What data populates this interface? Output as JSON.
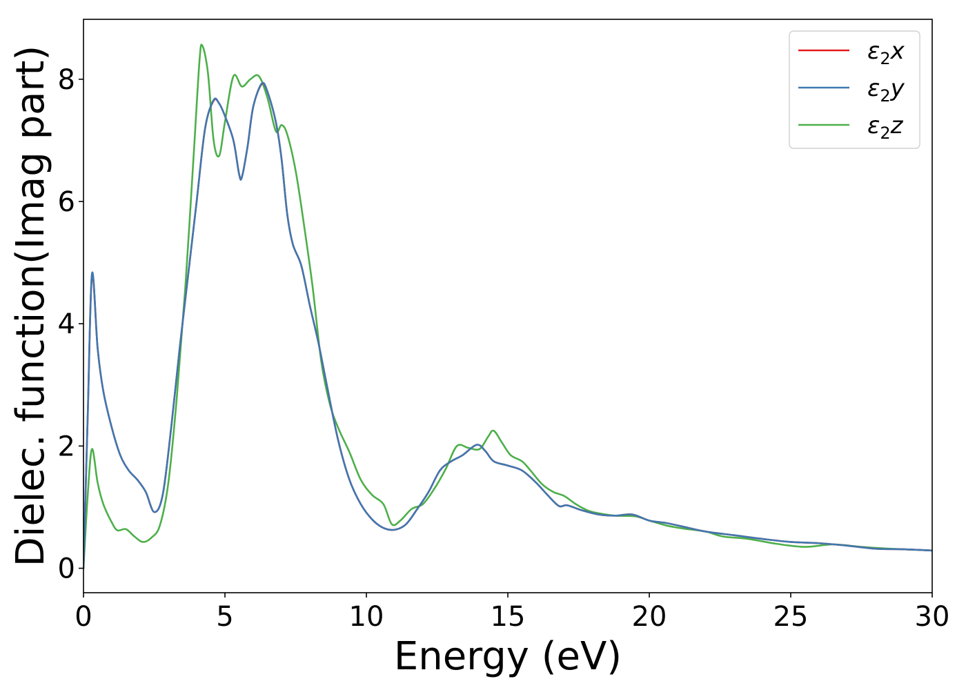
{
  "chart_data": {
    "type": "line",
    "title": "",
    "xlabel": "Energy (eV)",
    "ylabel": "Dielec. function(Imag part)",
    "xlim": [
      0,
      30
    ],
    "ylim": [
      -0.4,
      8.98
    ],
    "xticks": [
      0,
      5,
      10,
      15,
      20,
      25,
      30
    ],
    "yticks": [
      0,
      2,
      4,
      6,
      8
    ],
    "grid": false,
    "legend": {
      "position": "top-right"
    },
    "series": [
      {
        "name": "ε₂x",
        "legend_base": "ε",
        "legend_sub": "2",
        "legend_var": "x",
        "color": "#e41a1c",
        "points": [
          [
            0,
            0
          ],
          [
            0.15,
            2.5
          ],
          [
            0.3,
            4.8
          ],
          [
            0.5,
            3.6
          ],
          [
            0.7,
            2.9
          ],
          [
            1.0,
            2.3
          ],
          [
            1.3,
            1.85
          ],
          [
            1.6,
            1.6
          ],
          [
            1.9,
            1.45
          ],
          [
            2.2,
            1.25
          ],
          [
            2.5,
            0.92
          ],
          [
            2.8,
            1.2
          ],
          [
            3.1,
            2.3
          ],
          [
            3.4,
            3.6
          ],
          [
            3.7,
            4.8
          ],
          [
            4.0,
            6.0
          ],
          [
            4.3,
            7.2
          ],
          [
            4.6,
            7.65
          ],
          [
            4.8,
            7.6
          ],
          [
            5.0,
            7.4
          ],
          [
            5.3,
            7.0
          ],
          [
            5.5,
            6.45
          ],
          [
            5.6,
            6.4
          ],
          [
            5.8,
            6.9
          ],
          [
            6.0,
            7.55
          ],
          [
            6.3,
            7.92
          ],
          [
            6.5,
            7.8
          ],
          [
            6.8,
            7.3
          ],
          [
            7.0,
            6.7
          ],
          [
            7.2,
            5.8
          ],
          [
            7.4,
            5.3
          ],
          [
            7.7,
            4.95
          ],
          [
            8.0,
            4.3
          ],
          [
            8.3,
            3.7
          ],
          [
            8.6,
            3.0
          ],
          [
            9.0,
            2.1
          ],
          [
            9.4,
            1.45
          ],
          [
            9.8,
            1.05
          ],
          [
            10.2,
            0.8
          ],
          [
            10.6,
            0.66
          ],
          [
            11.0,
            0.63
          ],
          [
            11.4,
            0.72
          ],
          [
            11.8,
            0.97
          ],
          [
            12.2,
            1.25
          ],
          [
            12.6,
            1.6
          ],
          [
            13.0,
            1.75
          ],
          [
            13.4,
            1.85
          ],
          [
            13.9,
            2.02
          ],
          [
            14.2,
            1.92
          ],
          [
            14.5,
            1.75
          ],
          [
            15.0,
            1.68
          ],
          [
            15.5,
            1.6
          ],
          [
            16.0,
            1.4
          ],
          [
            16.4,
            1.2
          ],
          [
            16.8,
            1.02
          ],
          [
            17.1,
            1.03
          ],
          [
            17.6,
            0.95
          ],
          [
            18.2,
            0.88
          ],
          [
            18.8,
            0.86
          ],
          [
            19.4,
            0.88
          ],
          [
            20.0,
            0.78
          ],
          [
            20.6,
            0.74
          ],
          [
            21.2,
            0.68
          ],
          [
            22.0,
            0.6
          ],
          [
            23.0,
            0.54
          ],
          [
            24.0,
            0.48
          ],
          [
            25.0,
            0.43
          ],
          [
            26.0,
            0.41
          ],
          [
            27.0,
            0.37
          ],
          [
            28.0,
            0.32
          ],
          [
            29.0,
            0.31
          ],
          [
            30.0,
            0.29
          ]
        ]
      },
      {
        "name": "ε₂y",
        "legend_base": "ε",
        "legend_sub": "2",
        "legend_var": "y",
        "color": "#3f78b0",
        "points": [
          [
            0,
            0
          ],
          [
            0.15,
            2.5
          ],
          [
            0.3,
            4.82
          ],
          [
            0.5,
            3.6
          ],
          [
            0.7,
            2.9
          ],
          [
            1.0,
            2.3
          ],
          [
            1.3,
            1.85
          ],
          [
            1.6,
            1.6
          ],
          [
            1.9,
            1.45
          ],
          [
            2.2,
            1.25
          ],
          [
            2.5,
            0.92
          ],
          [
            2.8,
            1.2
          ],
          [
            3.1,
            2.3
          ],
          [
            3.4,
            3.6
          ],
          [
            3.7,
            4.8
          ],
          [
            4.0,
            6.0
          ],
          [
            4.3,
            7.2
          ],
          [
            4.6,
            7.66
          ],
          [
            4.8,
            7.6
          ],
          [
            5.0,
            7.4
          ],
          [
            5.3,
            7.0
          ],
          [
            5.5,
            6.45
          ],
          [
            5.6,
            6.4
          ],
          [
            5.8,
            6.9
          ],
          [
            6.0,
            7.55
          ],
          [
            6.3,
            7.93
          ],
          [
            6.5,
            7.8
          ],
          [
            6.8,
            7.3
          ],
          [
            7.0,
            6.7
          ],
          [
            7.2,
            5.8
          ],
          [
            7.4,
            5.3
          ],
          [
            7.7,
            4.95
          ],
          [
            8.0,
            4.3
          ],
          [
            8.3,
            3.7
          ],
          [
            8.6,
            3.0
          ],
          [
            9.0,
            2.1
          ],
          [
            9.4,
            1.45
          ],
          [
            9.8,
            1.05
          ],
          [
            10.2,
            0.8
          ],
          [
            10.6,
            0.66
          ],
          [
            11.0,
            0.63
          ],
          [
            11.4,
            0.72
          ],
          [
            11.8,
            0.97
          ],
          [
            12.2,
            1.25
          ],
          [
            12.6,
            1.6
          ],
          [
            13.0,
            1.75
          ],
          [
            13.4,
            1.85
          ],
          [
            13.9,
            2.02
          ],
          [
            14.2,
            1.92
          ],
          [
            14.5,
            1.75
          ],
          [
            15.0,
            1.68
          ],
          [
            15.5,
            1.6
          ],
          [
            16.0,
            1.4
          ],
          [
            16.4,
            1.2
          ],
          [
            16.8,
            1.02
          ],
          [
            17.1,
            1.03
          ],
          [
            17.6,
            0.95
          ],
          [
            18.2,
            0.88
          ],
          [
            18.8,
            0.86
          ],
          [
            19.4,
            0.88
          ],
          [
            20.0,
            0.78
          ],
          [
            20.6,
            0.74
          ],
          [
            21.2,
            0.68
          ],
          [
            22.0,
            0.6
          ],
          [
            23.0,
            0.54
          ],
          [
            24.0,
            0.48
          ],
          [
            25.0,
            0.43
          ],
          [
            26.0,
            0.41
          ],
          [
            27.0,
            0.37
          ],
          [
            28.0,
            0.32
          ],
          [
            29.0,
            0.31
          ],
          [
            30.0,
            0.29
          ]
        ]
      },
      {
        "name": "ε₂z",
        "legend_base": "ε",
        "legend_sub": "2",
        "legend_var": "z",
        "color": "#4daf4a",
        "points": [
          [
            0,
            0
          ],
          [
            0.15,
            1.2
          ],
          [
            0.3,
            1.95
          ],
          [
            0.5,
            1.4
          ],
          [
            0.7,
            1.05
          ],
          [
            1.0,
            0.75
          ],
          [
            1.2,
            0.62
          ],
          [
            1.5,
            0.64
          ],
          [
            1.8,
            0.52
          ],
          [
            2.1,
            0.43
          ],
          [
            2.4,
            0.5
          ],
          [
            2.7,
            0.7
          ],
          [
            3.0,
            1.4
          ],
          [
            3.3,
            2.8
          ],
          [
            3.6,
            4.6
          ],
          [
            3.9,
            6.8
          ],
          [
            4.1,
            8.3
          ],
          [
            4.2,
            8.55
          ],
          [
            4.4,
            8.1
          ],
          [
            4.6,
            7.0
          ],
          [
            4.8,
            6.75
          ],
          [
            5.0,
            7.3
          ],
          [
            5.3,
            8.05
          ],
          [
            5.6,
            7.88
          ],
          [
            5.9,
            8.0
          ],
          [
            6.2,
            8.05
          ],
          [
            6.5,
            7.7
          ],
          [
            6.8,
            7.15
          ],
          [
            7.0,
            7.25
          ],
          [
            7.2,
            7.1
          ],
          [
            7.5,
            6.5
          ],
          [
            7.8,
            5.6
          ],
          [
            8.1,
            4.6
          ],
          [
            8.4,
            3.4
          ],
          [
            8.7,
            2.7
          ],
          [
            9.0,
            2.3
          ],
          [
            9.4,
            1.9
          ],
          [
            9.8,
            1.45
          ],
          [
            10.2,
            1.2
          ],
          [
            10.6,
            1.05
          ],
          [
            10.9,
            0.72
          ],
          [
            11.2,
            0.78
          ],
          [
            11.6,
            0.97
          ],
          [
            12.0,
            1.05
          ],
          [
            12.4,
            1.3
          ],
          [
            12.8,
            1.62
          ],
          [
            13.2,
            2.0
          ],
          [
            13.6,
            1.97
          ],
          [
            14.0,
            1.95
          ],
          [
            14.3,
            2.15
          ],
          [
            14.5,
            2.25
          ],
          [
            14.8,
            2.05
          ],
          [
            15.1,
            1.85
          ],
          [
            15.5,
            1.75
          ],
          [
            15.8,
            1.6
          ],
          [
            16.2,
            1.38
          ],
          [
            16.6,
            1.25
          ],
          [
            17.0,
            1.18
          ],
          [
            17.4,
            1.05
          ],
          [
            17.8,
            0.95
          ],
          [
            18.2,
            0.9
          ],
          [
            18.8,
            0.86
          ],
          [
            19.5,
            0.85
          ],
          [
            20.0,
            0.78
          ],
          [
            20.6,
            0.7
          ],
          [
            21.2,
            0.65
          ],
          [
            22.0,
            0.6
          ],
          [
            22.6,
            0.52
          ],
          [
            23.5,
            0.48
          ],
          [
            24.5,
            0.4
          ],
          [
            25.5,
            0.35
          ],
          [
            26.5,
            0.39
          ],
          [
            27.5,
            0.35
          ],
          [
            28.5,
            0.32
          ],
          [
            30.0,
            0.29
          ]
        ]
      }
    ]
  }
}
